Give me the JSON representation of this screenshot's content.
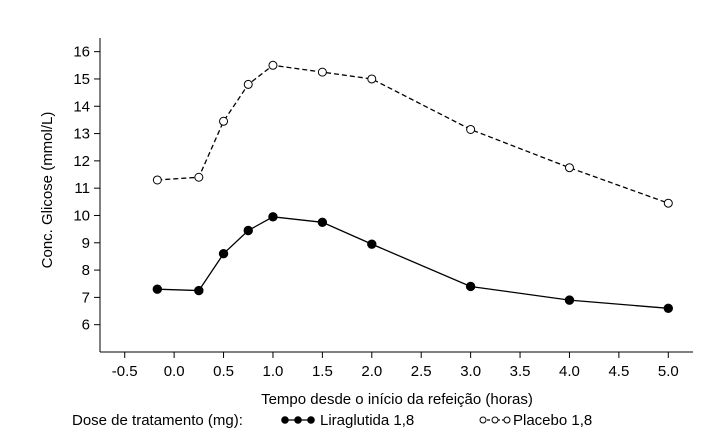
{
  "chart_data": {
    "type": "line",
    "xlabel": "Tempo desde o início da refeição (horas)",
    "ylabel": "Conc. Glicose (mmol/L)",
    "xlim": [
      -0.75,
      5.25
    ],
    "ylim": [
      5.0,
      16.5
    ],
    "xticks": [
      -0.5,
      0.0,
      0.5,
      1.0,
      1.5,
      2.0,
      2.5,
      3.0,
      3.5,
      4.0,
      4.5,
      5.0
    ],
    "xtick_labels": [
      "-0.5",
      "0.0",
      "0.5",
      "1.0",
      "1.5",
      "2.0",
      "2.5",
      "3.0",
      "3.5",
      "4.0",
      "4.5",
      "5.0"
    ],
    "yticks": [
      6,
      7,
      8,
      9,
      10,
      11,
      12,
      13,
      14,
      15,
      16
    ],
    "ytick_labels": [
      "6",
      "7",
      "8",
      "9",
      "10",
      "11",
      "12",
      "13",
      "14",
      "15",
      "16"
    ],
    "grid": false,
    "series": [
      {
        "name": "Liraglutida 1,8",
        "style": "solid",
        "marker": "filled-circle",
        "x": [
          -0.17,
          0.25,
          0.5,
          0.75,
          1.0,
          1.5,
          2.0,
          3.0,
          4.0,
          5.0
        ],
        "y": [
          7.3,
          7.25,
          8.6,
          9.45,
          9.95,
          9.75,
          8.95,
          7.4,
          6.9,
          6.6
        ]
      },
      {
        "name": "Placebo 1,8",
        "style": "dashed",
        "marker": "open-circle",
        "x": [
          -0.17,
          0.25,
          0.5,
          0.75,
          1.0,
          1.5,
          2.0,
          3.0,
          4.0,
          5.0
        ],
        "y": [
          11.3,
          11.4,
          13.45,
          14.8,
          15.5,
          15.25,
          15.0,
          13.15,
          11.75,
          10.45
        ]
      }
    ],
    "legend": {
      "title": "Dose de tratamento (mg):",
      "placement": "bottom",
      "entries": [
        "Liraglutida 1,8",
        "Placebo 1,8"
      ]
    },
    "colors": {
      "line": "#000000",
      "background": "#ffffff"
    }
  }
}
